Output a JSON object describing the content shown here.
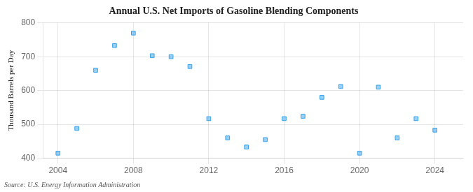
{
  "chart_data": {
    "type": "scatter",
    "title": "Annual U.S. Net Imports of Gasoline Blending Components",
    "ylabel": "Thousand Barrels per Day",
    "source": "Source: U.S. Energy Information Administration",
    "x": [
      2004,
      2005,
      2006,
      2007,
      2008,
      2009,
      2010,
      2011,
      2012,
      2013,
      2014,
      2015,
      2016,
      2017,
      2018,
      2019,
      2020,
      2021,
      2022,
      2023,
      2024
    ],
    "values": [
      415,
      488,
      660,
      733,
      770,
      703,
      700,
      671,
      517,
      460,
      433,
      455,
      517,
      524,
      580,
      612,
      415,
      610,
      460,
      517,
      483
    ],
    "marker": "square",
    "xlim": [
      2003.2,
      2025.5
    ],
    "xticks": [
      2004,
      2008,
      2012,
      2016,
      2020,
      2024
    ],
    "ylim": [
      400,
      800
    ],
    "yticks": [
      400,
      500,
      600,
      700,
      800
    ],
    "grid": true
  }
}
